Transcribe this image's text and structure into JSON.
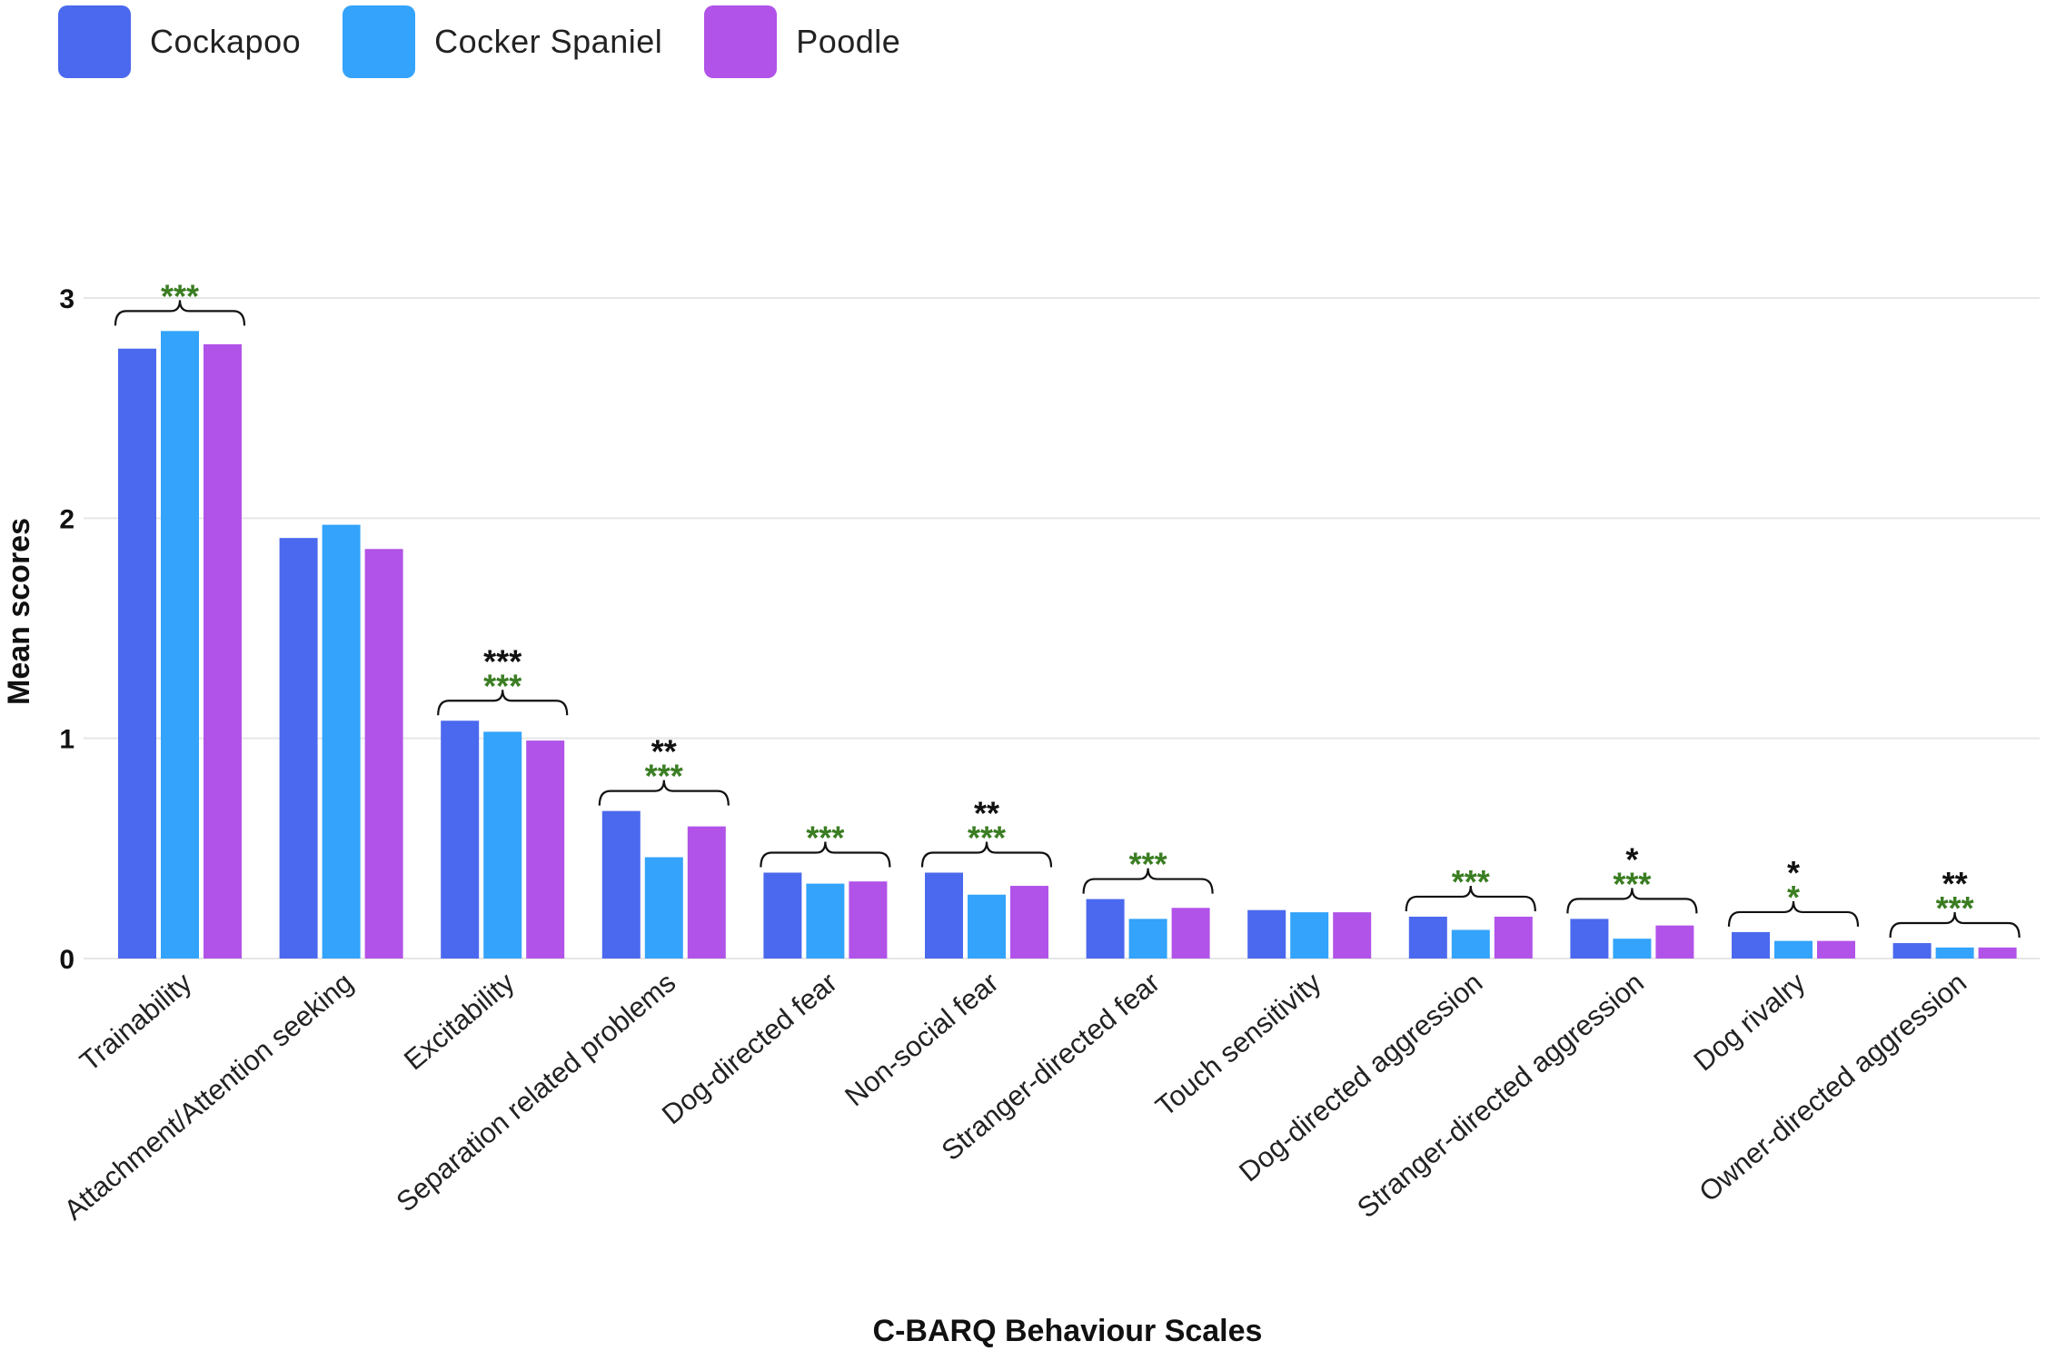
{
  "chart_data": {
    "type": "bar",
    "title": "",
    "xlabel": "C-BARQ Behaviour Scales",
    "ylabel": "Mean scores",
    "ylim": [
      0,
      3
    ],
    "yticks": [
      0,
      1,
      2,
      3
    ],
    "grid": true,
    "legend_position": "top-left",
    "categories": [
      "Trainability",
      "Attachment/Attention seeking",
      "Excitability",
      "Separation related problems",
      "Dog-directed fear",
      "Non-social fear",
      "Stranger-directed fear",
      "Touch sensitivity",
      "Dog-directed aggression",
      "Stranger-directed aggression",
      "Dog rivalry",
      "Owner-directed aggression"
    ],
    "series": [
      {
        "name": "Cockapoo",
        "color": "#4b69ee",
        "values": [
          2.77,
          1.91,
          1.08,
          0.67,
          0.39,
          0.39,
          0.27,
          0.22,
          0.19,
          0.18,
          0.12,
          0.07
        ]
      },
      {
        "name": "Cocker Spaniel",
        "color": "#33a3fb",
        "values": [
          2.85,
          1.97,
          1.03,
          0.46,
          0.34,
          0.29,
          0.18,
          0.21,
          0.13,
          0.09,
          0.08,
          0.05
        ]
      },
      {
        "name": "Poodle",
        "color": "#b153e8",
        "values": [
          2.79,
          1.86,
          0.99,
          0.6,
          0.35,
          0.33,
          0.23,
          0.21,
          0.19,
          0.15,
          0.08,
          0.05
        ]
      }
    ],
    "significance": [
      {
        "category": "Trainability",
        "black": "",
        "green": "***"
      },
      {
        "category": "Attachment/Attention seeking",
        "black": "",
        "green": ""
      },
      {
        "category": "Excitability",
        "black": "***",
        "green": "***"
      },
      {
        "category": "Separation related problems",
        "black": "**",
        "green": "***"
      },
      {
        "category": "Dog-directed fear",
        "black": "",
        "green": "***"
      },
      {
        "category": "Non-social fear",
        "black": "**",
        "green": "***"
      },
      {
        "category": "Stranger-directed fear",
        "black": "",
        "green": "***"
      },
      {
        "category": "Touch sensitivity",
        "black": "",
        "green": ""
      },
      {
        "category": "Dog-directed aggression",
        "black": "",
        "green": "***"
      },
      {
        "category": "Stranger-directed aggression",
        "black": "*",
        "green": "***"
      },
      {
        "category": "Dog rivalry",
        "black": "*",
        "green": "*"
      },
      {
        "category": "Owner-directed aggression",
        "black": "**",
        "green": "***"
      }
    ],
    "significance_colors": {
      "black": "#111111",
      "green": "#3a7d22"
    },
    "grid_color": "#e6e6e6"
  }
}
